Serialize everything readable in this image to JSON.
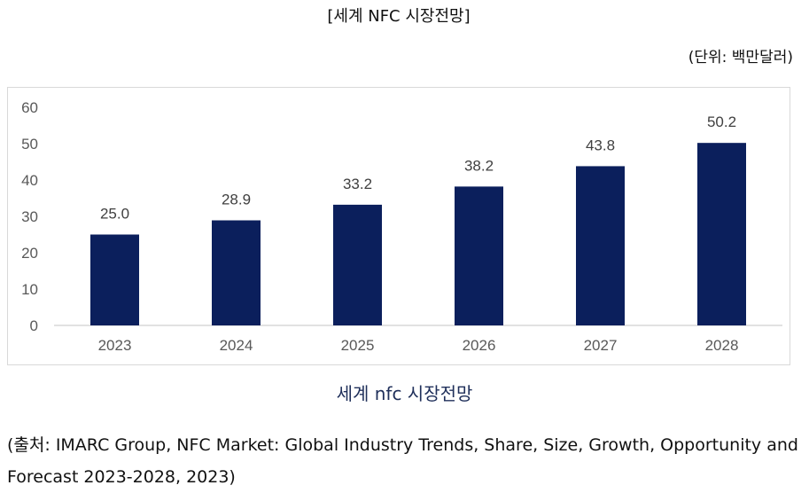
{
  "header": {
    "title": "[세계 NFC 시장전망]",
    "unit": "(단위: 백만달러)"
  },
  "caption": "세계 nfc 시장전망",
  "source": "(출처: IMARC Group, NFC Market: Global Industry Trends, Share, Size, Growth, Opportunity and Forecast 2023-2028, 2023)",
  "colors": {
    "bar": "#0b1f5c",
    "axis": "#d9d9d9",
    "tick_text": "#595959"
  },
  "chart_data": {
    "type": "bar",
    "categories": [
      "2023",
      "2024",
      "2025",
      "2026",
      "2027",
      "2028"
    ],
    "values": [
      25.0,
      28.9,
      33.2,
      38.2,
      43.8,
      50.2
    ],
    "value_labels": [
      "25.0",
      "28.9",
      "33.2",
      "38.2",
      "43.8",
      "50.2"
    ],
    "yticks": [
      "0",
      "10",
      "20",
      "30",
      "40",
      "50",
      "60"
    ],
    "ylim": [
      0,
      60
    ],
    "grid": false,
    "legend": "none",
    "title": "",
    "xlabel": "",
    "ylabel": ""
  }
}
